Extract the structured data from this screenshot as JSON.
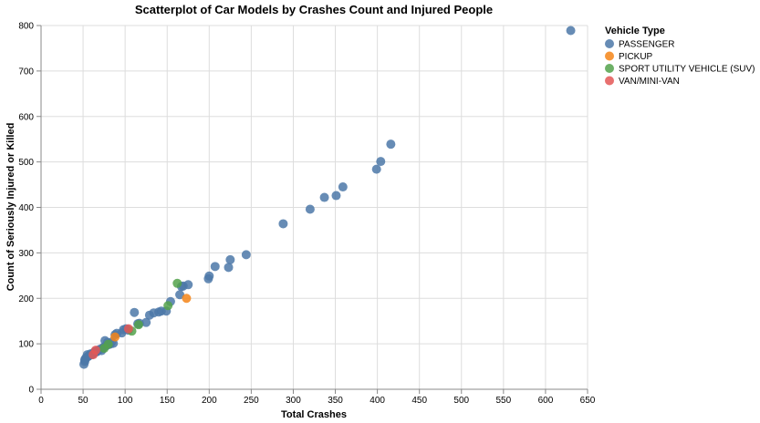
{
  "chart_data": {
    "type": "scatter",
    "title": "Scatterplot of Car Models by Crashes Count and Injured People",
    "xlabel": "Total Crashes",
    "ylabel": "Count of Seriously Injured or Killed",
    "xlim": [
      0,
      650
    ],
    "ylim": [
      0,
      800
    ],
    "x_ticks": [
      0,
      50,
      100,
      150,
      200,
      250,
      300,
      350,
      400,
      450,
      500,
      550,
      600,
      650
    ],
    "y_ticks": [
      0,
      100,
      200,
      300,
      400,
      500,
      600,
      700,
      800
    ],
    "grid": true,
    "legend": {
      "title": "Vehicle Type",
      "position": "top-right"
    },
    "series": [
      {
        "name": "PASSENGER",
        "color": "#4c78a8",
        "points": [
          [
            630,
            789
          ],
          [
            416,
            539
          ],
          [
            404,
            501
          ],
          [
            399,
            484
          ],
          [
            359,
            445
          ],
          [
            351,
            426
          ],
          [
            337,
            422
          ],
          [
            320,
            396
          ],
          [
            288,
            364
          ],
          [
            244,
            296
          ],
          [
            225,
            285
          ],
          [
            223,
            268
          ],
          [
            207,
            270
          ],
          [
            200,
            249
          ],
          [
            199,
            243
          ],
          [
            175,
            230
          ],
          [
            169,
            227
          ],
          [
            167,
            226
          ],
          [
            165,
            208
          ],
          [
            154,
            193
          ],
          [
            149,
            172
          ],
          [
            143,
            172
          ],
          [
            140,
            170
          ],
          [
            134,
            168
          ],
          [
            129,
            163
          ],
          [
            125,
            147
          ],
          [
            117,
            145
          ],
          [
            115,
            144
          ],
          [
            111,
            169
          ],
          [
            104,
            130
          ],
          [
            101,
            133
          ],
          [
            98,
            131
          ],
          [
            96,
            124
          ],
          [
            90,
            123
          ],
          [
            88,
            120
          ],
          [
            86,
            101
          ],
          [
            84,
            104
          ],
          [
            82,
            99
          ],
          [
            80,
            98
          ],
          [
            79,
            103
          ],
          [
            77,
            95
          ],
          [
            76,
            107
          ],
          [
            74,
            92
          ],
          [
            73,
            90
          ],
          [
            72,
            85
          ],
          [
            70,
            88
          ],
          [
            68,
            86
          ],
          [
            67,
            84
          ],
          [
            66,
            82
          ],
          [
            64,
            83
          ],
          [
            63,
            80
          ],
          [
            62,
            79
          ],
          [
            61,
            77
          ],
          [
            60,
            76
          ],
          [
            59,
            78
          ],
          [
            58,
            75
          ],
          [
            57,
            74
          ],
          [
            56,
            72
          ],
          [
            55,
            76
          ],
          [
            54,
            70
          ],
          [
            53,
            68
          ],
          [
            52,
            65
          ],
          [
            52,
            61
          ],
          [
            51,
            55
          ]
        ]
      },
      {
        "name": "PICKUP",
        "color": "#f58518",
        "points": [
          [
            173,
            200
          ],
          [
            88,
            115
          ]
        ]
      },
      {
        "name": "SPORT UTILITY VEHICLE (SUV)",
        "color": "#54a24b",
        "points": [
          [
            162,
            233
          ],
          [
            151,
            184
          ],
          [
            116,
            142
          ],
          [
            108,
            128
          ],
          [
            80,
            99
          ],
          [
            75,
            90
          ]
        ]
      },
      {
        "name": "VAN/MINI-VAN",
        "color": "#e45756",
        "points": [
          [
            104,
            133
          ],
          [
            65,
            86
          ],
          [
            62,
            76
          ]
        ]
      }
    ]
  }
}
